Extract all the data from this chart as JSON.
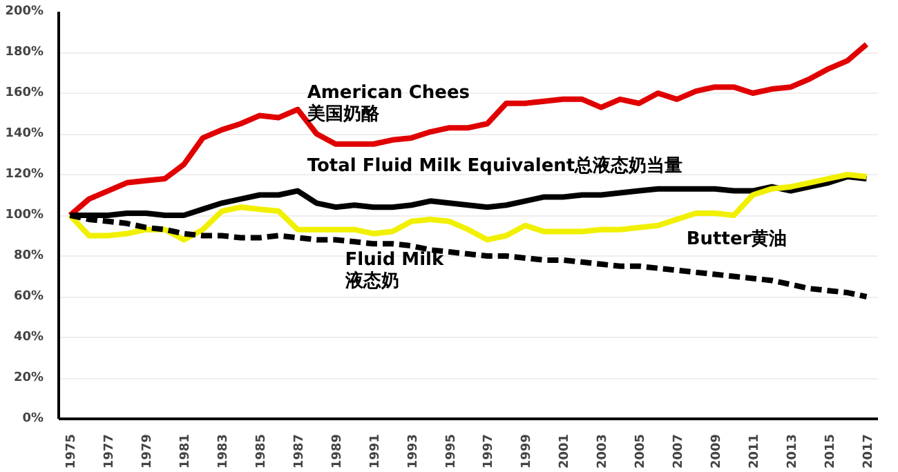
{
  "chart_data": {
    "type": "line",
    "categories": [
      "1975",
      null,
      "1977",
      null,
      "1979",
      null,
      "1981",
      null,
      "1983",
      null,
      "1985",
      null,
      "1987",
      null,
      "1989",
      null,
      "1991",
      null,
      "1993",
      null,
      "1995",
      null,
      "1997",
      null,
      "1999",
      null,
      "2001",
      null,
      "2003",
      null,
      "2005",
      null,
      "2007",
      null,
      "2009",
      null,
      "2011",
      null,
      "2013",
      null,
      "2015",
      null,
      "2017"
    ],
    "ylim": [
      0,
      200
    ],
    "yticks": [
      {
        "value": 0,
        "label": "0%"
      },
      {
        "value": 20,
        "label": "20%"
      },
      {
        "value": 40,
        "label": "40%"
      },
      {
        "value": 60,
        "label": "60%"
      },
      {
        "value": 80,
        "label": "80%"
      },
      {
        "value": 100,
        "label": "100%"
      },
      {
        "value": 120,
        "label": "120%"
      },
      {
        "value": 140,
        "label": "140%"
      },
      {
        "value": 160,
        "label": "160%"
      },
      {
        "value": 180,
        "label": "180%"
      },
      {
        "value": 200,
        "label": "200%"
      }
    ],
    "grid": "y",
    "marker": "none",
    "series": [
      {
        "name": "American Chees\n美国奶酪",
        "color": "#e00000",
        "line_style": "solid",
        "values": [
          100,
          108,
          112,
          116,
          117,
          118,
          125,
          138,
          142,
          145,
          149,
          148,
          152,
          140,
          135,
          135,
          135,
          137,
          138,
          141,
          143,
          143,
          145,
          155,
          155,
          156,
          157,
          157,
          153,
          157,
          155,
          160,
          157,
          161,
          163,
          163,
          160,
          162,
          163,
          167,
          172,
          176,
          184
        ]
      },
      {
        "name": "Total Fluid Milk Equivalent总液态奶当量",
        "color": "#000000",
        "line_style": "solid",
        "values": [
          100,
          100,
          100,
          101,
          101,
          100,
          100,
          103,
          106,
          108,
          110,
          110,
          112,
          106,
          104,
          105,
          104,
          104,
          105,
          107,
          106,
          105,
          104,
          105,
          107,
          109,
          109,
          110,
          110,
          111,
          112,
          113,
          113,
          113,
          113,
          112,
          112,
          114,
          112,
          114,
          116,
          119,
          118
        ]
      },
      {
        "name": "Butter黄油",
        "color": "#f0f000",
        "line_style": "solid",
        "values": [
          100,
          90,
          90,
          91,
          93,
          93,
          88,
          93,
          102,
          104,
          103,
          102,
          93,
          93,
          93,
          93,
          91,
          92,
          97,
          98,
          97,
          93,
          88,
          90,
          95,
          92,
          92,
          92,
          93,
          93,
          94,
          95,
          98,
          101,
          101,
          100,
          110,
          113,
          114,
          116,
          118,
          120,
          119
        ]
      },
      {
        "name": "Fluid Milk\n液态奶",
        "color": "#000000",
        "line_style": "dashed",
        "values": [
          100,
          98,
          97,
          96,
          94,
          93,
          91,
          90,
          90,
          89,
          89,
          90,
          89,
          88,
          88,
          87,
          86,
          86,
          85,
          83,
          82,
          81,
          80,
          80,
          79,
          78,
          78,
          77,
          76,
          75,
          75,
          74,
          73,
          72,
          71,
          70,
          69,
          68,
          66,
          64,
          63,
          62,
          60
        ]
      }
    ]
  }
}
